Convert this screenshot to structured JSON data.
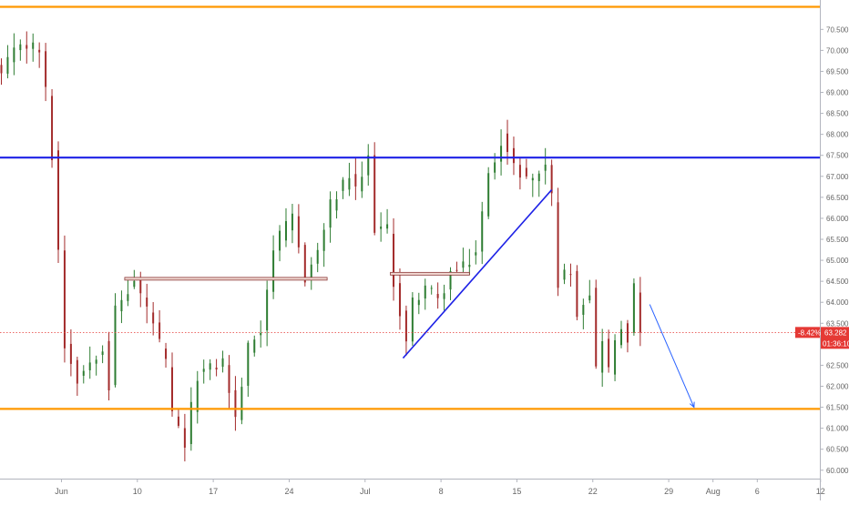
{
  "chart_data": {
    "type": "candlestick",
    "ylim": [
      59.8,
      71.2
    ],
    "y_ticks": [
      "60.000",
      "60.500",
      "61.000",
      "61.500",
      "62.000",
      "62.500",
      "63.000",
      "63.500",
      "64.000",
      "64.500",
      "65.000",
      "65.500",
      "66.000",
      "66.500",
      "67.000",
      "67.500",
      "68.000",
      "68.500",
      "69.000",
      "69.500",
      "70.000",
      "70.500"
    ],
    "x_tick_labels": [
      "Jun",
      "10",
      "17",
      "24",
      "Jul",
      "8",
      "15",
      "22",
      "29",
      "Aug",
      "6",
      "12"
    ],
    "x_tick_bars": [
      9.5,
      21.5,
      33.5,
      45.5,
      57.5,
      69.5,
      81.5,
      93.5,
      105.5,
      112.5,
      119.5,
      129.5
    ],
    "last_candle_bar": 101,
    "last_price": 63.282,
    "last_price_label": "63.282",
    "change_label": "-8.42%",
    "countdown_label": "01:36:10",
    "prev_label": "63.333",
    "prev_price": 63.333,
    "levels": [
      {
        "name": "resistance-top",
        "price": 71.037,
        "label": "71.037",
        "color": "#ff9800"
      },
      {
        "name": "resistance",
        "price": 67.447,
        "label": "67.447",
        "color": "#1e22e6"
      },
      {
        "name": "support",
        "price": 61.46,
        "label": "61.460",
        "color": "#ff9800"
      }
    ],
    "box_levels": [
      {
        "bar_start": 19.5,
        "bar_end": 51.5,
        "price": 64.56
      },
      {
        "bar_start": 61.5,
        "bar_end": 74,
        "price": 64.68
      }
    ],
    "trendline": {
      "bar_start": 63.5,
      "price_start": 62.67,
      "bar_end": 87,
      "price_end": 66.68
    },
    "projection_arrow": {
      "bar_start": 102.5,
      "price_start": 63.95,
      "bar_end": 109.5,
      "price_end": 61.5
    },
    "colors": {
      "up": "#2e7d32",
      "down": "#a32b2b",
      "last_price_line": "#e53935",
      "axis_text": "#666666"
    },
    "anchor_closes": [
      [
        0,
        69.4
      ],
      [
        3,
        70.2
      ],
      [
        6,
        70.0
      ],
      [
        7,
        69.0
      ],
      [
        8,
        67.5
      ],
      [
        10,
        63.0
      ],
      [
        12,
        62.2
      ],
      [
        16,
        63.0
      ],
      [
        17,
        62.0
      ],
      [
        18,
        63.8
      ],
      [
        21,
        64.5
      ],
      [
        24,
        63.5
      ],
      [
        26,
        62.5
      ],
      [
        27,
        61.3
      ],
      [
        29,
        60.6
      ],
      [
        31,
        62.3
      ],
      [
        33,
        62.4
      ],
      [
        35,
        62.6
      ],
      [
        37,
        61.2
      ],
      [
        39,
        62.9
      ],
      [
        41,
        63.4
      ],
      [
        43,
        65.3
      ],
      [
        46,
        66.0
      ],
      [
        48,
        64.6
      ],
      [
        50,
        65.2
      ],
      [
        52,
        66.3
      ],
      [
        55,
        67.0
      ],
      [
        56,
        66.6
      ],
      [
        58,
        67.4
      ],
      [
        59,
        65.8
      ],
      [
        61,
        65.7
      ],
      [
        62,
        64.5
      ],
      [
        64,
        63.0
      ],
      [
        65,
        64.0
      ],
      [
        67,
        64.4
      ],
      [
        69,
        64.0
      ],
      [
        71,
        64.7
      ],
      [
        73,
        64.8
      ],
      [
        75,
        65.2
      ],
      [
        77,
        67.0
      ],
      [
        79,
        67.9
      ],
      [
        81,
        67.2
      ],
      [
        84,
        66.9
      ],
      [
        86,
        67.3
      ],
      [
        87,
        66.5
      ],
      [
        88,
        64.5
      ],
      [
        90,
        64.8
      ],
      [
        91,
        63.8
      ],
      [
        93,
        64.3
      ],
      [
        94,
        62.4
      ],
      [
        95,
        63.2
      ],
      [
        96,
        62.4
      ],
      [
        97,
        63.0
      ],
      [
        98,
        63.4
      ],
      [
        99,
        63.2
      ],
      [
        100,
        64.3
      ],
      [
        101,
        63.282
      ]
    ]
  }
}
